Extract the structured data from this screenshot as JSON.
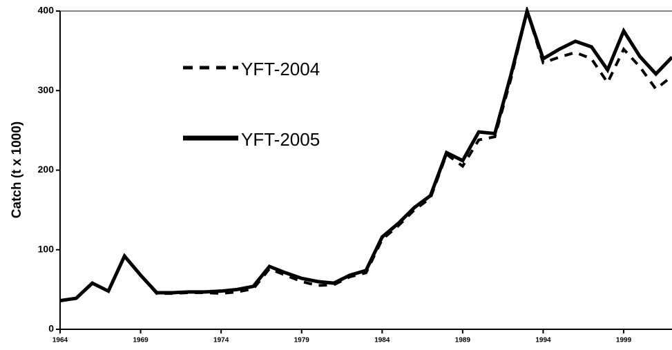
{
  "chart_data": {
    "type": "line",
    "ylabel": "Catch (t x 1000)",
    "x": [
      1964,
      1965,
      1966,
      1967,
      1968,
      1969,
      1970,
      1971,
      1972,
      1973,
      1974,
      1975,
      1976,
      1977,
      1978,
      1979,
      1980,
      1981,
      1982,
      1983,
      1984,
      1985,
      1986,
      1987,
      1988,
      1989,
      1990,
      1991,
      1992,
      1993,
      1994,
      1995,
      1996,
      1997,
      1998,
      1999,
      2000,
      2001,
      2002
    ],
    "series": [
      {
        "name": "YFT-2004",
        "color": "#000000",
        "style": "dashed",
        "values": [
          36,
          39,
          58,
          48,
          92,
          68,
          45,
          45,
          46,
          46,
          45,
          47,
          51,
          76,
          68,
          60,
          55,
          56,
          66,
          71,
          113,
          130,
          150,
          165,
          220,
          205,
          238,
          242,
          315,
          400,
          335,
          342,
          348,
          340,
          310,
          352,
          330,
          302,
          318
        ]
      },
      {
        "name": "YFT-2005",
        "color": "#000000",
        "style": "solid",
        "values": [
          36,
          39,
          58,
          48,
          92,
          68,
          46,
          46,
          47,
          47,
          48,
          50,
          54,
          79,
          71,
          64,
          60,
          58,
          68,
          74,
          116,
          133,
          153,
          168,
          222,
          212,
          248,
          246,
          320,
          400,
          340,
          352,
          362,
          355,
          326,
          375,
          343,
          321,
          342
        ]
      }
    ],
    "xlim": [
      1964,
      2002
    ],
    "xticks": [
      1964,
      1969,
      1974,
      1979,
      1984,
      1989,
      1994,
      1999
    ],
    "ylim": [
      0,
      400
    ],
    "yticks": [
      0,
      100,
      200,
      300,
      400
    ],
    "legend": "upper left"
  }
}
